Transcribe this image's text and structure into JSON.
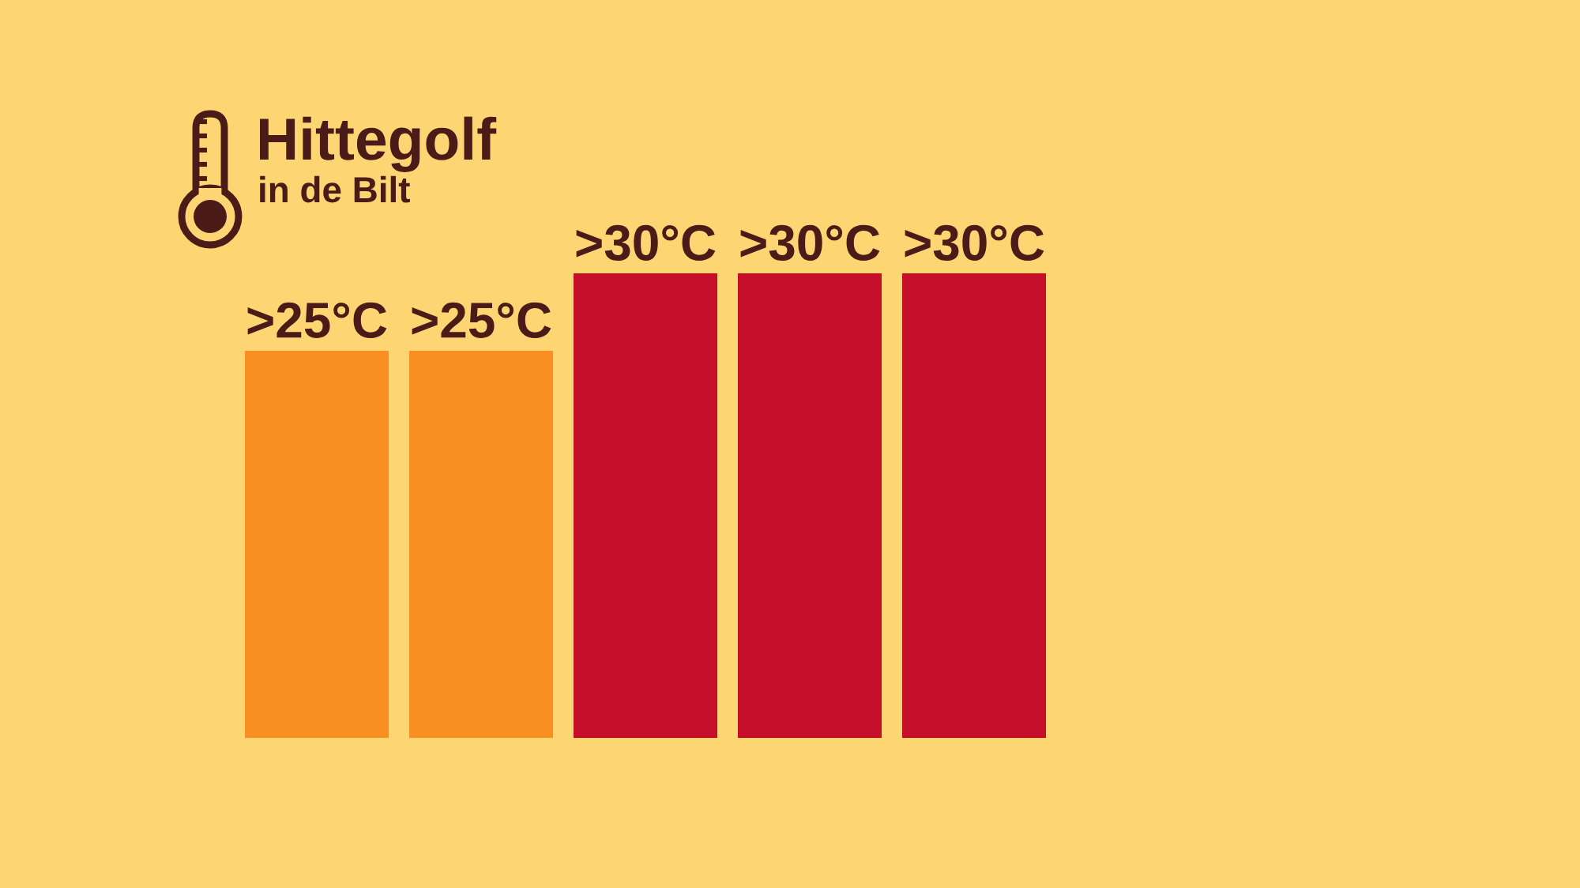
{
  "chart_data": {
    "type": "bar",
    "title": "Hittegolf",
    "subtitle": "in de Bilt",
    "categories": [
      null,
      null,
      null,
      null,
      null
    ],
    "values": [
      25,
      25,
      30,
      30,
      30
    ],
    "colors": [
      "#f98e22",
      "#f98e22",
      "#c50f28",
      "#c50f28",
      "#c50f28"
    ],
    "tick_labels": false,
    "value_labels": [
      ">25°C",
      ">25°C",
      ">30°C",
      ">30°C",
      ">30°C"
    ]
  }
}
